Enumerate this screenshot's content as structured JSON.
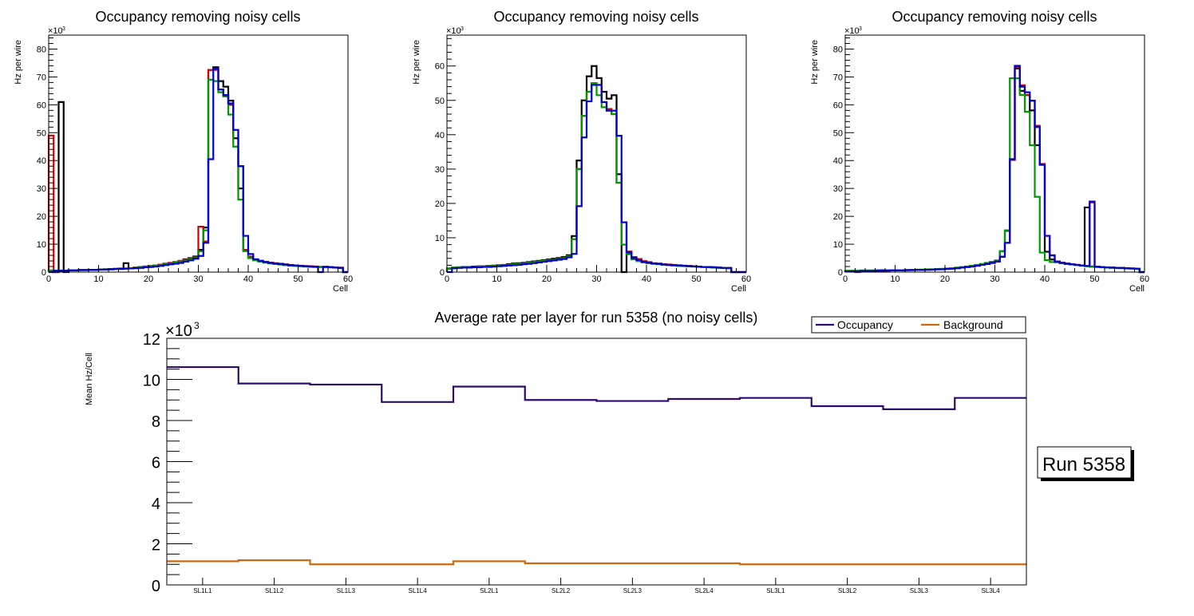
{
  "chart_data": [
    {
      "type": "histogram-step",
      "title": "Occupancy removing noisy cells",
      "xlabel": "Cell",
      "ylabel": "Hz per wire",
      "y_multiplier_label": "×10",
      "y_multiplier_exp": "3",
      "xlim": [
        0,
        60
      ],
      "ylim": [
        0,
        85
      ],
      "x_ticks": [
        0,
        10,
        20,
        30,
        40,
        50,
        60
      ],
      "y_ticks": [
        0,
        10,
        20,
        30,
        40,
        50,
        60,
        70,
        80
      ],
      "bin_width": 1,
      "series": [
        {
          "name": "black",
          "color": "#000000",
          "values": [
            0.5,
            0,
            61,
            0,
            0.6,
            0.6,
            0.8,
            0.8,
            0.8,
            0.8,
            0.9,
            1.0,
            1.1,
            1.2,
            1.3,
            3.2,
            1.4,
            1.6,
            1.8,
            2.0,
            2.2,
            2.4,
            2.7,
            3.0,
            3.3,
            3.6,
            4.0,
            4.6,
            5.0,
            5.6,
            8.0,
            16,
            72.5,
            73.5,
            68.5,
            66.5,
            61.5,
            48,
            30,
            8,
            5.5,
            4.5,
            4,
            3.6,
            3.3,
            3.1,
            2.9,
            2.7,
            2.5,
            2.3,
            2.2,
            2.1,
            2.0,
            1.9,
            1.8,
            1.8,
            1.7,
            1.6,
            1.5,
            0
          ]
        },
        {
          "name": "red",
          "color": "#cc0000",
          "values": [
            49,
            0,
            0.5,
            0.5,
            0.6,
            0.6,
            0.7,
            0.8,
            0.8,
            0.8,
            0.9,
            1.0,
            1.0,
            1.1,
            1.2,
            1.3,
            1.4,
            1.6,
            1.8,
            2.0,
            2.2,
            2.4,
            2.7,
            3.0,
            3.3,
            3.6,
            4.0,
            4.4,
            4.8,
            5.3,
            16.3,
            11,
            72.5,
            72.5,
            65.5,
            63.5,
            60,
            51,
            38,
            8,
            5.5,
            4.6,
            4.1,
            3.7,
            3.4,
            3.2,
            3.0,
            2.8,
            2.6,
            2.4,
            2.3,
            2.2,
            2.1,
            2.0,
            1.9,
            1.9,
            1.8,
            1.7,
            1.6,
            0
          ]
        },
        {
          "name": "green",
          "color": "#009900",
          "values": [
            0.6,
            0.5,
            0.5,
            0.5,
            0.6,
            0.6,
            0.7,
            0.7,
            0.8,
            0.8,
            0.9,
            1.0,
            1.0,
            1.1,
            1.2,
            1.3,
            1.4,
            1.5,
            1.7,
            1.9,
            2.1,
            2.3,
            2.5,
            2.8,
            3.1,
            3.4,
            3.8,
            4.2,
            4.6,
            5.0,
            7.5,
            15,
            69,
            68.5,
            64.5,
            63,
            56.5,
            45,
            26,
            7.5,
            5,
            4.2,
            3.8,
            3.4,
            3.1,
            2.9,
            2.7,
            2.5,
            2.3,
            2.2,
            2.1,
            2.0,
            1.9,
            1.8,
            1.8,
            1.7,
            1.7,
            1.6,
            1.5,
            0
          ]
        },
        {
          "name": "blue",
          "color": "#0000cc",
          "values": [
            0,
            0.5,
            0.5,
            0.5,
            0.6,
            0.6,
            0.7,
            0.7,
            0.8,
            0.8,
            0.9,
            0.9,
            1.0,
            1.1,
            1.1,
            1.2,
            1.3,
            1.4,
            1.5,
            1.7,
            1.8,
            2.0,
            2.2,
            2.5,
            2.8,
            3.0,
            3.3,
            3.8,
            4.2,
            4.8,
            5.8,
            10.5,
            40.5,
            73,
            65.5,
            63.5,
            60.5,
            51,
            38,
            13,
            6.5,
            4.6,
            4.0,
            3.6,
            3.3,
            3.1,
            2.9,
            2.7,
            2.5,
            2.4,
            2.2,
            2.1,
            2.0,
            1.9,
            0,
            1.9,
            1.8,
            1.6,
            1.5,
            0
          ]
        }
      ]
    },
    {
      "type": "histogram-step",
      "title": "Occupancy removing noisy cells",
      "xlabel": "Cell",
      "ylabel": "Hz per wire",
      "y_multiplier_label": "×10",
      "y_multiplier_exp": "3",
      "xlim": [
        0,
        60
      ],
      "ylim": [
        0,
        69
      ],
      "x_ticks": [
        0,
        10,
        20,
        30,
        40,
        50,
        60
      ],
      "y_ticks": [
        0,
        10,
        20,
        30,
        40,
        50,
        60
      ],
      "bin_width": 1,
      "series": [
        {
          "name": "black",
          "color": "#000000",
          "values": [
            1.0,
            1.3,
            1.4,
            1.5,
            1.5,
            1.6,
            1.7,
            1.7,
            1.8,
            1.9,
            2.0,
            2.1,
            2.3,
            2.5,
            2.6,
            2.7,
            2.9,
            3.1,
            3.3,
            3.5,
            3.7,
            3.9,
            4.1,
            4.4,
            4.9,
            10.5,
            32.5,
            50,
            57,
            60,
            56.5,
            52.5,
            50.5,
            51.5,
            28.5,
            0,
            5.5,
            4.0,
            3.5,
            3.0,
            2.7,
            2.5,
            2.4,
            2.2,
            2.1,
            2.0,
            1.9,
            1.8,
            1.8,
            1.7,
            1.6,
            1.5,
            1.5,
            1.4,
            1.3,
            1.2,
            1.2,
            0,
            0,
            0
          ]
        },
        {
          "name": "red",
          "color": "#cc0000",
          "values": [
            1.0,
            1.2,
            1.3,
            1.4,
            1.4,
            1.5,
            1.6,
            1.6,
            1.7,
            1.8,
            1.9,
            2.0,
            2.1,
            2.3,
            2.4,
            2.5,
            2.7,
            2.9,
            3.1,
            3.3,
            3.5,
            3.6,
            3.8,
            4.1,
            4.6,
            9.6,
            30,
            45.5,
            52.5,
            55,
            54.5,
            49.5,
            47.5,
            46,
            26,
            14.5,
            6,
            4.4,
            3.8,
            3.2,
            2.9,
            2.6,
            2.5,
            2.3,
            2.2,
            2.1,
            2.0,
            1.9,
            1.8,
            1.7,
            1.6,
            1.5,
            1.5,
            1.4,
            1.3,
            1.2,
            1.2,
            0,
            0,
            0
          ]
        },
        {
          "name": "green",
          "color": "#009900",
          "values": [
            1.1,
            1.3,
            1.4,
            1.4,
            1.4,
            1.5,
            1.6,
            1.6,
            1.7,
            1.8,
            1.9,
            2.0,
            2.1,
            2.3,
            2.4,
            2.5,
            2.7,
            2.9,
            3.1,
            3.3,
            3.5,
            3.6,
            3.8,
            4.1,
            4.6,
            9.6,
            30,
            45.5,
            52.5,
            55,
            51.5,
            48,
            47,
            46,
            26,
            8,
            5.2,
            3.7,
            3.2,
            2.8,
            2.6,
            2.4,
            2.3,
            2.1,
            2.0,
            1.9,
            1.8,
            1.8,
            1.7,
            1.6,
            1.5,
            1.5,
            1.4,
            1.3,
            1.2,
            1.2,
            1.1,
            0,
            0,
            0
          ]
        },
        {
          "name": "blue",
          "color": "#0000cc",
          "values": [
            0,
            1.1,
            1.2,
            1.3,
            1.3,
            1.4,
            1.4,
            1.5,
            1.5,
            1.6,
            1.7,
            1.8,
            1.9,
            2.0,
            2.1,
            2.3,
            2.4,
            2.6,
            2.8,
            3.0,
            3.2,
            3.4,
            3.6,
            3.8,
            4.3,
            5.3,
            19.2,
            39.2,
            49.7,
            54.5,
            54.5,
            49.5,
            47,
            47,
            39.7,
            14.5,
            5.8,
            4.1,
            3.5,
            3.0,
            2.7,
            2.5,
            2.4,
            2.2,
            2.1,
            2.0,
            1.9,
            1.8,
            1.7,
            1.7,
            1.6,
            1.5,
            1.5,
            1.4,
            1.3,
            1.2,
            1.2,
            0,
            0,
            0
          ]
        }
      ]
    },
    {
      "type": "histogram-step",
      "title": "Occupancy removing noisy cells",
      "xlabel": "Cell",
      "ylabel": "Hz per wire",
      "y_multiplier_label": "×10",
      "y_multiplier_exp": "3",
      "xlim": [
        0,
        60
      ],
      "ylim": [
        0,
        85
      ],
      "x_ticks": [
        0,
        10,
        20,
        30,
        40,
        50,
        60
      ],
      "y_ticks": [
        0,
        10,
        20,
        30,
        40,
        50,
        60,
        70,
        80
      ],
      "bin_width": 1,
      "series": [
        {
          "name": "black",
          "color": "#000000",
          "values": [
            0.3,
            0.4,
            0.4,
            0.5,
            0.5,
            0.5,
            0.6,
            0.7,
            0.6,
            0.6,
            0.6,
            0.7,
            0.7,
            0.8,
            0.8,
            0.8,
            0.9,
            0.9,
            1.0,
            1.1,
            1.2,
            1.3,
            1.5,
            1.7,
            1.9,
            2.1,
            2.4,
            2.7,
            3.1,
            3.5,
            4.0,
            7.5,
            14.8,
            40.5,
            73,
            65,
            63.5,
            58,
            45.5,
            38.5,
            7.3,
            4.5,
            3.6,
            3.3,
            3.0,
            2.8,
            2.6,
            2.4,
            23.2,
            2,
            1.9,
            1.8,
            1.7,
            1.6,
            1.5,
            1.5,
            1.4,
            1.3,
            1.2,
            0
          ]
        },
        {
          "name": "red",
          "color": "#cc0000",
          "values": [
            0.2,
            0.3,
            0,
            0.4,
            0.4,
            0.5,
            0.5,
            0.5,
            0.6,
            0.6,
            0.6,
            0.7,
            0.7,
            0.8,
            0.8,
            0.8,
            0.9,
            0.9,
            1.0,
            1.1,
            1.2,
            1.3,
            1.4,
            1.6,
            1.8,
            2.0,
            2.3,
            2.6,
            2.9,
            3.3,
            3.8,
            5.5,
            10.5,
            40.2,
            73.5,
            67,
            63.5,
            61.5,
            52.5,
            38.8,
            13,
            6.0,
            3.8,
            3.4,
            3.1,
            2.8,
            2.6,
            2.4,
            2.2,
            25,
            1.9,
            1.8,
            1.7,
            1.6,
            1.5,
            1.5,
            1.4,
            1.3,
            1.2,
            0
          ]
        },
        {
          "name": "green",
          "color": "#009900",
          "values": [
            0.5,
            0.5,
            0.5,
            0.6,
            0.6,
            0.6,
            0.6,
            0.6,
            0.7,
            0.7,
            0.7,
            0.7,
            0.8,
            0.8,
            0.9,
            0.9,
            1.0,
            1.0,
            1.1,
            1.2,
            1.3,
            1.4,
            1.6,
            1.8,
            2.0,
            2.3,
            2.6,
            2.9,
            3.3,
            3.7,
            4.2,
            7.5,
            15,
            69.5,
            69.5,
            63.5,
            57.5,
            45.5,
            27,
            7,
            4.3,
            3.6,
            3.5,
            3.2,
            2.9,
            2.7,
            2.5,
            2.3,
            2.1,
            1.9,
            1.8,
            1.7,
            1.6,
            1.5,
            1.5,
            1.4,
            1.3,
            1.2,
            1.1,
            0
          ]
        },
        {
          "name": "blue",
          "color": "#0000cc",
          "values": [
            0.2,
            0.3,
            0.3,
            0.4,
            0.4,
            0.4,
            0.5,
            0.5,
            0.5,
            0.6,
            0.6,
            0.6,
            0.7,
            0.7,
            0.8,
            0.8,
            0.8,
            0.9,
            1.0,
            1.0,
            1.1,
            1.2,
            1.4,
            1.6,
            1.8,
            2.0,
            2.3,
            2.6,
            2.9,
            3.3,
            3.8,
            5.5,
            10.5,
            40.5,
            74,
            66.5,
            64.5,
            61.5,
            52,
            38.5,
            13,
            6.0,
            3.8,
            3.3,
            3.0,
            2.8,
            2.6,
            2.4,
            2.2,
            25.3,
            1.9,
            1.8,
            1.7,
            1.6,
            1.5,
            1.5,
            1.4,
            1.3,
            1.2,
            0
          ]
        }
      ]
    },
    {
      "type": "histogram-step",
      "title": "Average rate per layer for run 5358 (no noisy cells)",
      "xlabel": "",
      "ylabel": "Mean Hz/Cell",
      "y_multiplier_label": "×10",
      "y_multiplier_exp": "3",
      "ylim": [
        0,
        12
      ],
      "y_ticks": [
        0,
        2,
        4,
        6,
        8,
        10,
        12
      ],
      "categories": [
        "SL1L1",
        "SL1L2",
        "SL1L3",
        "SL1L4",
        "SL2L1",
        "SL2L2",
        "SL2L3",
        "SL2L4",
        "SL3L1",
        "SL3L2",
        "SL3L3",
        "SL3L4"
      ],
      "legend_position": "top-right",
      "series": [
        {
          "name": "Occupancy",
          "color": "#2e0a6e",
          "values": [
            10.6,
            9.8,
            9.75,
            8.9,
            9.65,
            9.0,
            8.95,
            9.05,
            9.1,
            8.7,
            8.55,
            9.1
          ]
        },
        {
          "name": "Background",
          "color": "#cc6a10",
          "values": [
            1.15,
            1.2,
            1.0,
            1.0,
            1.15,
            1.05,
            1.05,
            1.05,
            1.0,
            1.0,
            1.0,
            1.0
          ]
        }
      ]
    }
  ],
  "run_label": "Run 5358"
}
